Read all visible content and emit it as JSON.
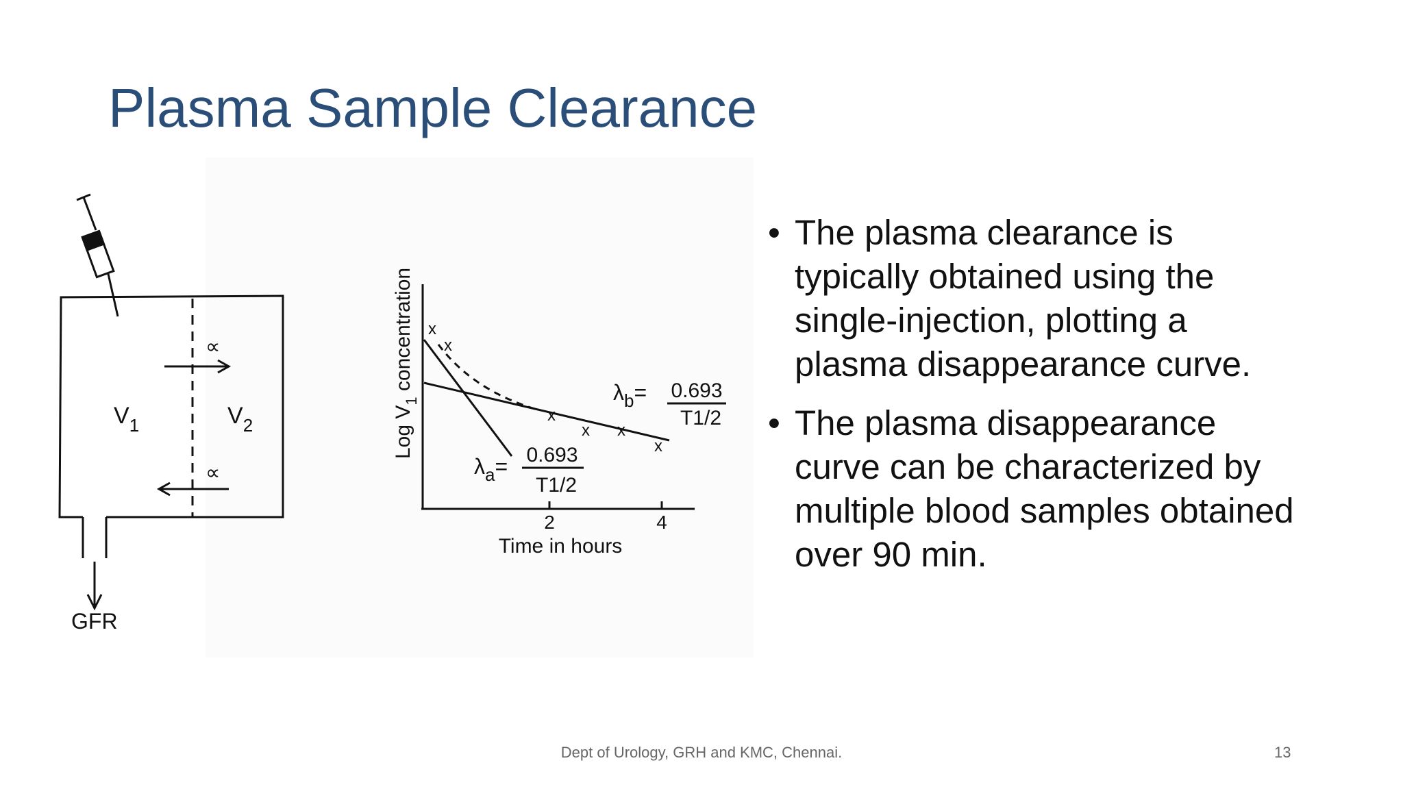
{
  "title": "Plasma Sample Clearance",
  "bullets": [
    "The plasma clearance is typically obtained using the single-injection, plotting a plasma disappearance curve.",
    "The plasma disappearance curve can be characterized by multiple blood samples obtained over 90 min."
  ],
  "figure": {
    "compartment_1": {
      "base": "V",
      "sub": "1"
    },
    "compartment_2": {
      "base": "V",
      "sub": "2"
    },
    "rate_symbol": "∝",
    "outflow": "GFR",
    "y_axis": {
      "pre": "Log  V",
      "sub": "1",
      "post": " concentration"
    },
    "x_axis": "Time  in  hours",
    "x_ticks": [
      "2",
      "4"
    ],
    "lambda_a": {
      "base": "λ",
      "sub": "a",
      "eq": "=",
      "num": "0.693",
      "den": "T1/2"
    },
    "lambda_b": {
      "base": "λ",
      "sub": "b",
      "eq": "=",
      "num": "0.693",
      "den": "T1/2"
    }
  },
  "footer": "Dept of Urology, GRH and KMC, Chennai.",
  "page_number": "13"
}
